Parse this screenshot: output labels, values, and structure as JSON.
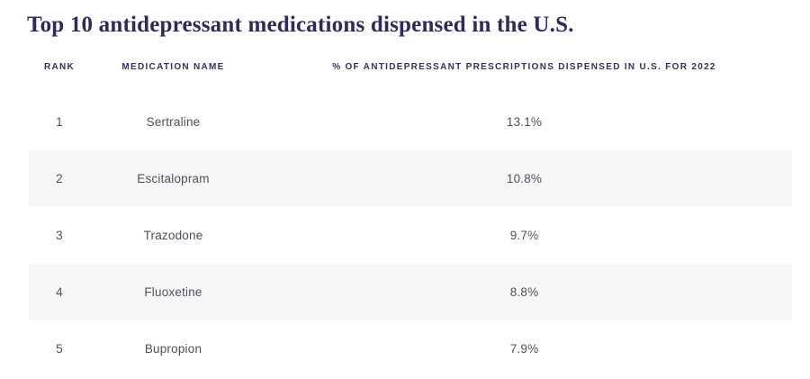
{
  "title": "Top 10 antidepressant medications dispensed in the U.S.",
  "table": {
    "columns": [
      "RANK",
      "MEDICATION NAME",
      "% OF ANTIDEPRESSANT PRESCRIPTIONS DISPENSED IN U.S. FOR 2022"
    ],
    "rows": [
      {
        "rank": "1",
        "name": "Sertraline",
        "pct": "13.1%"
      },
      {
        "rank": "2",
        "name": "Escitalopram",
        "pct": "10.8%"
      },
      {
        "rank": "3",
        "name": "Trazodone",
        "pct": "9.7%"
      },
      {
        "rank": "4",
        "name": "Fluoxetine",
        "pct": "8.8%"
      },
      {
        "rank": "5",
        "name": "Bupropion",
        "pct": "7.9%"
      }
    ]
  },
  "colors": {
    "title_text": "#2f295c",
    "header_text": "#35305f",
    "body_text": "#504e5e",
    "row_alt_background": "#f7f7f8",
    "page_background": "#ffffff"
  },
  "chart_data": {
    "type": "table",
    "title": "Top 10 antidepressant medications dispensed in the U.S.",
    "columns": [
      "Rank",
      "Medication name",
      "% of antidepressant prescriptions dispensed in U.S. for 2022"
    ],
    "categories": [
      "Sertraline",
      "Escitalopram",
      "Trazodone",
      "Fluoxetine",
      "Bupropion"
    ],
    "ranks": [
      1,
      2,
      3,
      4,
      5
    ],
    "values": [
      13.1,
      10.8,
      9.7,
      8.8,
      7.9
    ],
    "value_unit": "%",
    "layout": "alternating row shading, center-aligned columns, rows 6-10 not visible in screenshot"
  }
}
